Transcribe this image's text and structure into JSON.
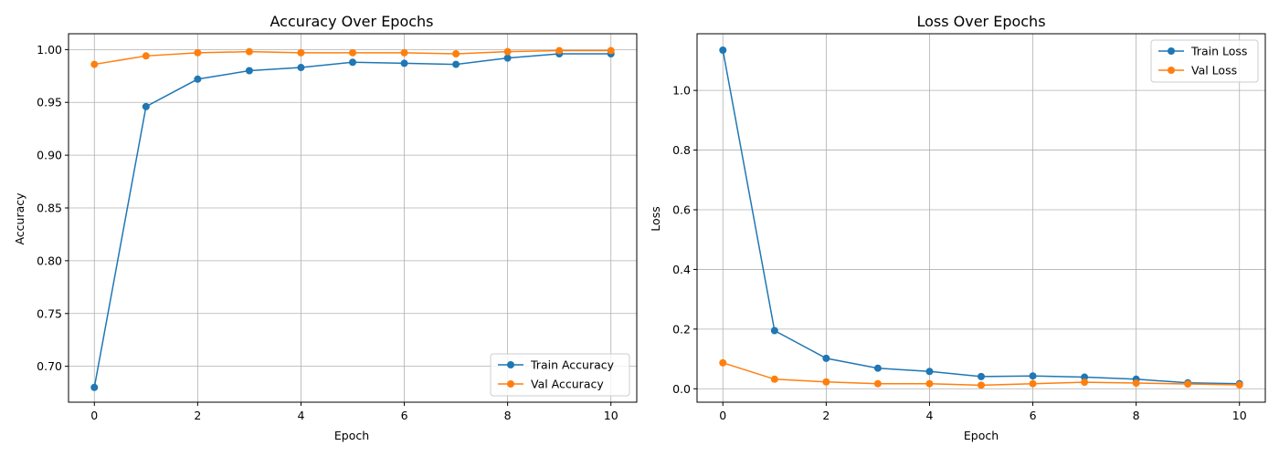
{
  "chart_data": [
    {
      "type": "line",
      "title": "Accuracy Over Epochs",
      "xlabel": "Epoch",
      "ylabel": "Accuracy",
      "xlim": [
        -0.5,
        10.5
      ],
      "ylim": [
        0.666,
        1.015
      ],
      "xticks": [
        0,
        2,
        4,
        6,
        8,
        10
      ],
      "xtick_labels": [
        "0",
        "2",
        "4",
        "6",
        "8",
        "10"
      ],
      "yticks": [
        0.7,
        0.75,
        0.8,
        0.85,
        0.9,
        0.95,
        1.0
      ],
      "ytick_labels": [
        "0.70",
        "0.75",
        "0.80",
        "0.85",
        "0.90",
        "0.95",
        "1.00"
      ],
      "grid": true,
      "legend_position": "lower-right",
      "x": [
        0,
        1,
        2,
        3,
        4,
        5,
        6,
        7,
        8,
        9,
        10
      ],
      "series": [
        {
          "name": "Train Accuracy",
          "color": "#1f77b4",
          "values": [
            0.68,
            0.946,
            0.972,
            0.98,
            0.983,
            0.988,
            0.987,
            0.986,
            0.992,
            0.996,
            0.996
          ]
        },
        {
          "name": "Val Accuracy",
          "color": "#ff7f0e",
          "values": [
            0.986,
            0.994,
            0.997,
            0.998,
            0.997,
            0.997,
            0.997,
            0.996,
            0.998,
            0.999,
            0.999
          ]
        }
      ]
    },
    {
      "type": "line",
      "title": "Loss Over Epochs",
      "xlabel": "Epoch",
      "ylabel": "Loss",
      "xlim": [
        -0.5,
        10.5
      ],
      "ylim": [
        -0.045,
        1.19
      ],
      "xticks": [
        0,
        2,
        4,
        6,
        8,
        10
      ],
      "xtick_labels": [
        "0",
        "2",
        "4",
        "6",
        "8",
        "10"
      ],
      "yticks": [
        0.0,
        0.2,
        0.4,
        0.6,
        0.8,
        1.0
      ],
      "ytick_labels": [
        "0.0",
        "0.2",
        "0.4",
        "0.6",
        "0.8",
        "1.0"
      ],
      "grid": true,
      "legend_position": "upper-right",
      "x": [
        0,
        1,
        2,
        3,
        4,
        5,
        6,
        7,
        8,
        9,
        10
      ],
      "series": [
        {
          "name": "Train Loss",
          "color": "#1f77b4",
          "values": [
            1.135,
            0.195,
            0.102,
            0.069,
            0.058,
            0.041,
            0.043,
            0.039,
            0.032,
            0.02,
            0.017
          ]
        },
        {
          "name": "Val Loss",
          "color": "#ff7f0e",
          "values": [
            0.087,
            0.032,
            0.023,
            0.017,
            0.017,
            0.012,
            0.017,
            0.022,
            0.019,
            0.016,
            0.013
          ]
        }
      ]
    }
  ]
}
